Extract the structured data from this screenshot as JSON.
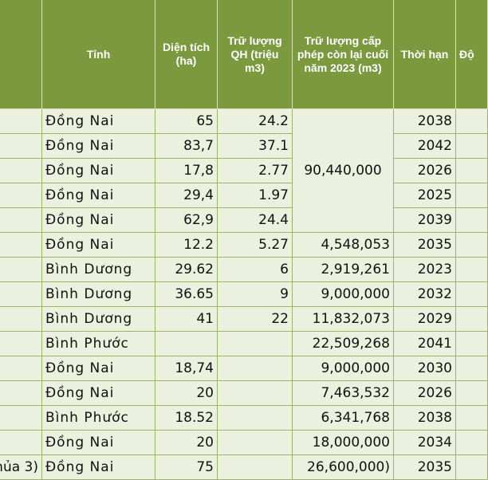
{
  "table": {
    "headers": {
      "col0": "",
      "province": "Tỉnh",
      "area": "Diện tích (ha)",
      "reserve_plan": "Trữ lượng QH (triệu m3)",
      "licensed_remaining": "Trữ lượng cấp phép còn lại cuối năm 2023 (m3)",
      "term": "Thời hạn",
      "col6": "Độ"
    },
    "merged_licensed_rows_1_5": "90,440,000",
    "rows": [
      {
        "name": "",
        "province": "Đồng Nai",
        "area": "65",
        "reserve": "24.2",
        "licensed": "",
        "term": "2038"
      },
      {
        "name": "",
        "province": "Đồng Nai",
        "area": "83,7",
        "reserve": "37.1",
        "licensed": "",
        "term": "2042"
      },
      {
        "name": "",
        "province": "Đồng Nai",
        "area": "17,8",
        "reserve": "2.77",
        "licensed": "",
        "term": "2026"
      },
      {
        "name": "",
        "province": "Đồng Nai",
        "area": "29,4",
        "reserve": "1.97",
        "licensed": "",
        "term": "2025"
      },
      {
        "name": "",
        "province": "Đồng Nai",
        "area": "62,9",
        "reserve": "24.4",
        "licensed": "",
        "term": "2039"
      },
      {
        "name": "",
        "province": "Đồng Nai",
        "area": "12.2",
        "reserve": "5.27",
        "licensed": "4,548,053",
        "term": "2035"
      },
      {
        "name": "",
        "province": "Bình Dương",
        "area": "29.62",
        "reserve": "6",
        "licensed": "2,919,261",
        "term": "2023"
      },
      {
        "name": "",
        "province": "Bình Dương",
        "area": "36.65",
        "reserve": "9",
        "licensed": "9,000,000",
        "term": "2032"
      },
      {
        "name": "",
        "province": "Bình Dương",
        "area": "41",
        "reserve": "22",
        "licensed": "11,832,073",
        "term": "2029"
      },
      {
        "name": "",
        "province": "Bình Phước",
        "area": "",
        "reserve": "",
        "licensed": "22,509,268",
        "term": "2041"
      },
      {
        "name": "",
        "province": "Đồng Nai",
        "area": "18,74",
        "reserve": "",
        "licensed": "9,000,000",
        "term": "2030"
      },
      {
        "name": "",
        "province": "Đồng Nai",
        "area": "20",
        "reserve": "",
        "licensed": "7,463,532",
        "term": "2026"
      },
      {
        "name": "",
        "province": "Bình Phước",
        "area": "18.52",
        "reserve": "",
        "licensed": "6,341,768",
        "term": "2038"
      },
      {
        "name": "",
        "province": "Đồng Nai",
        "area": "20",
        "reserve": "",
        "licensed": "18,000,000",
        "term": "2034"
      },
      {
        "name": "hủa 3)",
        "province": "Đồng Nai",
        "area": "75",
        "reserve": "",
        "licensed": "26,600,000)",
        "term": "2035"
      }
    ]
  },
  "colors": {
    "header_bg": "#7b9a3e",
    "header_text": "#ffffff",
    "cell_bg": "#ebf1de",
    "grid_line": "#9bb36b"
  }
}
